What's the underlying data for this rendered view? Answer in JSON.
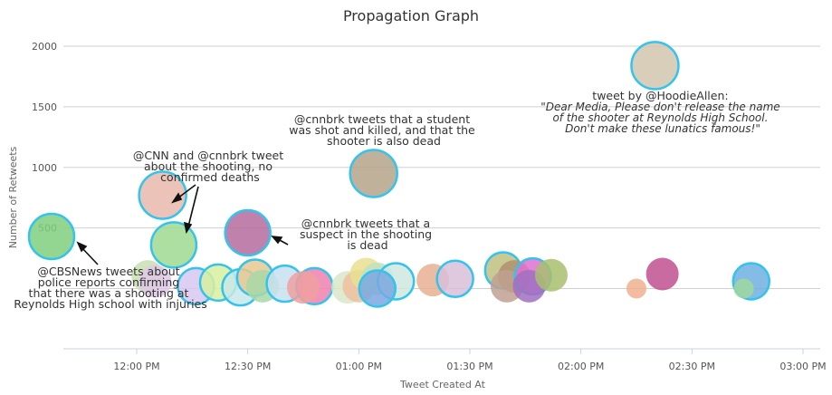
{
  "chart_data": {
    "type": "scatter",
    "title": "Propagation Graph",
    "xlabel": "Tweet Created At",
    "ylabel": "Number of Retweets",
    "x_ticks": [
      "12:00 PM",
      "12:30 PM",
      "01:00 PM",
      "01:30 PM",
      "02:00 PM",
      "02:30 PM",
      "03:00 PM"
    ],
    "y_ticks": [
      500,
      1000,
      1500,
      2000
    ],
    "xlim": [
      "11:35 AM",
      "03:05 PM"
    ],
    "ylim": [
      -500,
      2200
    ],
    "grid": "horizontal",
    "points": [
      {
        "time": "11:37 AM",
        "retweets": 430,
        "color": "#7fcf7f",
        "outlined": true
      },
      {
        "time": "12:07 AM",
        "retweets": 770,
        "color": "#e8b9ab",
        "outlined": true
      },
      {
        "time": "12:10 PM",
        "retweets": 360,
        "color": "#9fdb8f",
        "outlined": true
      },
      {
        "time": "12:30 PM",
        "retweets": 460,
        "color": "#b56b9f",
        "outlined": true
      },
      {
        "time": "01:04 PM",
        "retweets": 950,
        "color": "#b5a38a",
        "outlined": true
      },
      {
        "time": "02:20 PM",
        "retweets": 1840,
        "color": "#d2c5ae",
        "outlined": true
      },
      {
        "time": "12:03 PM",
        "retweets": 100,
        "color": "#c8e0b0",
        "outlined": false
      },
      {
        "time": "12:05 PM",
        "retweets": 60,
        "color": "#e0c8e8",
        "outlined": false
      },
      {
        "time": "12:16 PM",
        "retweets": 20,
        "color": "#d8c8f0",
        "outlined": true
      },
      {
        "time": "12:22 PM",
        "retweets": 50,
        "color": "#d8f0a0",
        "outlined": true
      },
      {
        "time": "12:28 PM",
        "retweets": 10,
        "color": "#c8e8e8",
        "outlined": true
      },
      {
        "time": "12:32 PM",
        "retweets": 90,
        "color": "#e8c890",
        "outlined": true
      },
      {
        "time": "12:34 PM",
        "retweets": 20,
        "color": "#a8d8a8",
        "outlined": false
      },
      {
        "time": "12:40 PM",
        "retweets": 40,
        "color": "#c8e0f0",
        "outlined": true
      },
      {
        "time": "12:48 PM",
        "retweets": 20,
        "color": "#f080b0",
        "outlined": true
      },
      {
        "time": "12:45 PM",
        "retweets": 10,
        "color": "#f0a0a0",
        "outlined": false
      },
      {
        "time": "12:57 PM",
        "retweets": 10,
        "color": "#d8e8c8",
        "outlined": false
      },
      {
        "time": "01:00 PM",
        "retweets": 20,
        "color": "#f0c0a0",
        "outlined": false
      },
      {
        "time": "01:02 PM",
        "retweets": 120,
        "color": "#e8e090",
        "outlined": false
      },
      {
        "time": "01:05 PM",
        "retweets": 80,
        "color": "#c0e0c0",
        "outlined": false
      },
      {
        "time": "01:10 PM",
        "retweets": 60,
        "color": "#d0e8e0",
        "outlined": true
      },
      {
        "time": "01:05 PM",
        "retweets": 0,
        "color": "#7aa8e0",
        "outlined": true
      },
      {
        "time": "01:20 PM",
        "retweets": 70,
        "color": "#e8b090",
        "outlined": false
      },
      {
        "time": "01:26 PM",
        "retweets": 80,
        "color": "#d8c0d8",
        "outlined": true
      },
      {
        "time": "01:39 PM",
        "retweets": 150,
        "color": "#c0c080",
        "outlined": true
      },
      {
        "time": "01:42 PM",
        "retweets": 100,
        "color": "#b09070",
        "outlined": false
      },
      {
        "time": "01:40 PM",
        "retweets": 20,
        "color": "#c0a090",
        "outlined": false
      },
      {
        "time": "01:47 PM",
        "retweets": 100,
        "color": "#e070d0",
        "outlined": true
      },
      {
        "time": "01:46 PM",
        "retweets": 20,
        "color": "#a070c0",
        "outlined": false
      },
      {
        "time": "01:52 PM",
        "retweets": 110,
        "color": "#a8c070",
        "outlined": false
      },
      {
        "time": "02:15 PM",
        "retweets": 0,
        "color": "#f0b090",
        "outlined": false
      },
      {
        "time": "02:22 PM",
        "retweets": 120,
        "color": "#c05090",
        "outlined": false
      },
      {
        "time": "02:46 PM",
        "retweets": 60,
        "color": "#70b0e0",
        "outlined": true
      },
      {
        "time": "02:44 PM",
        "retweets": 0,
        "color": "#a0d8a0",
        "outlined": false
      }
    ],
    "annotations": [
      {
        "lines": [
          "@CBSNews tweets about",
          "police reports confirming",
          "that there was a shooting at",
          "Reynolds High school with injuries"
        ]
      },
      {
        "lines": [
          "@CNN and @cnnbrk tweet",
          "about the shooting, no",
          "confirmed deaths"
        ]
      },
      {
        "lines": [
          "@cnnbrk tweets that a",
          "suspect in the shooting",
          "is dead"
        ]
      },
      {
        "lines": [
          "@cnnbrk tweets that a student",
          "was shot and killed, and that the",
          "shooter is also dead"
        ]
      },
      {
        "lines": [
          "tweet by @HoodieAllen:",
          "\"Dear Media, Please don't release the name",
          "of the shooter at Reynolds High School.",
          "Don't make these lunatics famous!\""
        ]
      }
    ]
  }
}
